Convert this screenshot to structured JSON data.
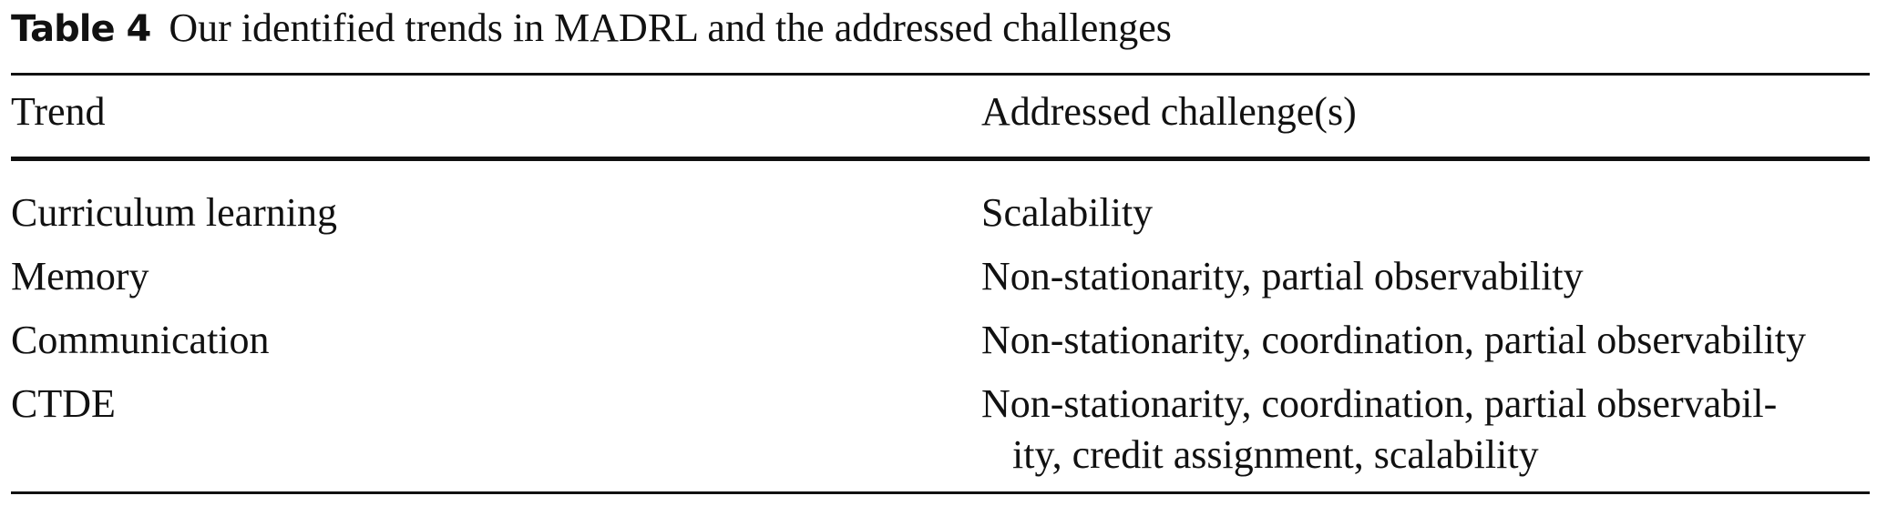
{
  "caption": {
    "label": "Table 4",
    "text": "Our identified trends in MADRL and the addressed challenges"
  },
  "table": {
    "headers": [
      "Trend",
      "Addressed challenge(s)"
    ],
    "rows": [
      {
        "trend": "Curriculum learning",
        "challenges": [
          "Scalability"
        ]
      },
      {
        "trend": "Memory",
        "challenges": [
          "Non-stationarity, partial observability"
        ]
      },
      {
        "trend": "Communication",
        "challenges": [
          "Non-stationarity, coordination, partial observability"
        ]
      },
      {
        "trend": "CTDE",
        "challenges": [
          "Non-stationarity, coordination, partial observabil-",
          "ity, credit assignment, scalability"
        ]
      }
    ]
  }
}
